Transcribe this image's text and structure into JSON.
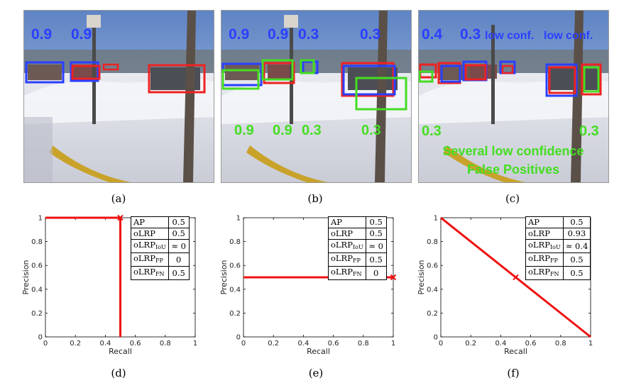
{
  "colors": {
    "blue": "#2b3fff",
    "red": "#ee2222",
    "green": "#44dd22",
    "curve": "#ee1111"
  },
  "panels": [
    {
      "id": "a",
      "caption": "(a)",
      "labels": {
        "blue_top_1": "0.9",
        "blue_top_2": "0.9"
      }
    },
    {
      "id": "b",
      "caption": "(b)",
      "labels": {
        "blue_top_1": "0.9",
        "blue_top_2": "0.9",
        "blue_top_3": "0.3",
        "blue_top_4": "0.3",
        "green_bot_1": "0.9",
        "green_bot_2": "0.9",
        "green_bot_3": "0.3",
        "green_bot_4": "0.3"
      }
    },
    {
      "id": "c",
      "caption": "(c)",
      "labels": {
        "blue_top_1": "0.4",
        "blue_top_2": "0.3",
        "blue_top_3": "low conf.",
        "blue_top_4": "low conf.",
        "green_bot_1": "0.3",
        "green_bot_2": "0.3",
        "green_note_1": "Several low confidence",
        "green_note_2": "False Positives"
      }
    }
  ],
  "metric_names": [
    "AP",
    "oLRP",
    "oLRP",
    "oLRP",
    "oLRP"
  ],
  "metric_subscripts": [
    "",
    "",
    "IoU",
    "FP",
    "FN"
  ],
  "chart_data": [
    {
      "caption": "(d)",
      "type": "line",
      "xlabel": "Recall",
      "ylabel": "Precision",
      "xlim": [
        0,
        1
      ],
      "ylim": [
        0,
        1
      ],
      "xticks": [
        "0",
        "0.2",
        "0.4",
        "0.6",
        "0.8",
        "1"
      ],
      "yticks": [
        "0",
        "0.2",
        "0.4",
        "0.6",
        "0.8",
        "1"
      ],
      "x": [
        0,
        0.5,
        0.5
      ],
      "y": [
        1,
        1,
        0
      ],
      "marker": [
        0.5,
        1
      ],
      "metric_values": [
        "0.5",
        "0.5",
        "≈ 0",
        "0",
        "0.5"
      ]
    },
    {
      "caption": "(e)",
      "type": "line",
      "xlabel": "Recall",
      "ylabel": "Precision",
      "xlim": [
        0,
        1
      ],
      "ylim": [
        0,
        1
      ],
      "xticks": [
        "0",
        "0.2",
        "0.4",
        "0.6",
        "0.8",
        "1"
      ],
      "yticks": [
        "0",
        "0.2",
        "0.4",
        "0.6",
        "0.8",
        "1"
      ],
      "x": [
        0,
        1
      ],
      "y": [
        0.5,
        0.5
      ],
      "marker": [
        1,
        0.5
      ],
      "metric_values": [
        "0.5",
        "0.5",
        "≈ 0",
        "0.5",
        "0"
      ]
    },
    {
      "caption": "(f)",
      "type": "line",
      "xlabel": "Recall",
      "ylabel": "Precision",
      "xlim": [
        0,
        1
      ],
      "ylim": [
        0,
        1
      ],
      "xticks": [
        "0",
        "0.2",
        "0.4",
        "0.6",
        "0.8",
        "1"
      ],
      "yticks": [
        "0",
        "0.2",
        "0.4",
        "0.6",
        "0.8",
        "1"
      ],
      "x": [
        0,
        1
      ],
      "y": [
        1,
        0
      ],
      "marker": [
        0.5,
        0.5
      ],
      "metric_values": [
        "0.5",
        "0.93",
        "≈ 0.4",
        "0.5",
        "0.5"
      ]
    }
  ]
}
